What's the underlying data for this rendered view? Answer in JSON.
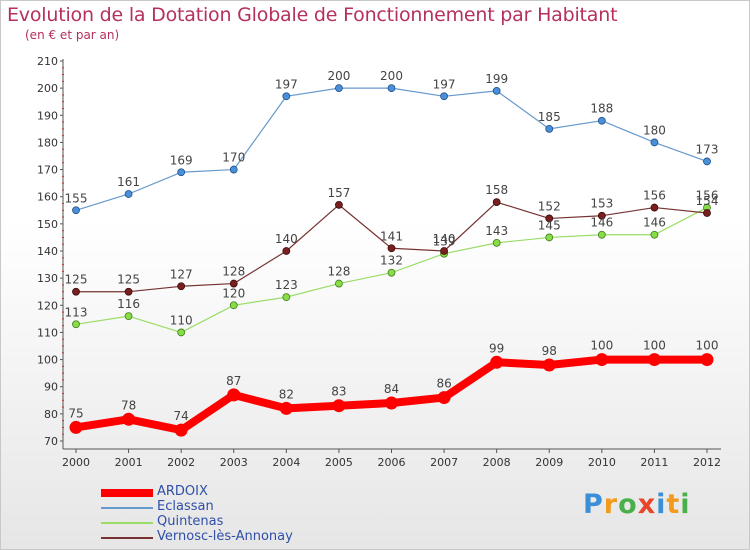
{
  "chart_data": {
    "type": "line",
    "title": "Evolution de la Dotation Globale de Fonctionnement par Habitant",
    "subtitle": "(en € et par an)",
    "x": [
      "2000",
      "2001",
      "2002",
      "2003",
      "2004",
      "2005",
      "2006",
      "2007",
      "2008",
      "2009",
      "2010",
      "2011",
      "2012"
    ],
    "ylim": [
      70,
      210
    ],
    "yticks": [
      70,
      80,
      90,
      100,
      110,
      120,
      130,
      140,
      150,
      160,
      170,
      180,
      190,
      200,
      210
    ],
    "grid": false,
    "legend_position": "bottom-left",
    "series": [
      {
        "name": "ARDOIX",
        "color": "#ff0000",
        "values": [
          75,
          78,
          74,
          87,
          82,
          83,
          84,
          86,
          99,
          98,
          100,
          100,
          100
        ]
      },
      {
        "name": "Eclassan",
        "color": "#6699cc",
        "values": [
          155,
          161,
          169,
          170,
          197,
          200,
          200,
          197,
          199,
          185,
          188,
          180,
          173
        ]
      },
      {
        "name": "Quintenas",
        "color": "#99dd66",
        "values": [
          113,
          116,
          110,
          120,
          123,
          128,
          132,
          139,
          143,
          145,
          146,
          146,
          156
        ]
      },
      {
        "name": "Vernosc-lès-Annonay",
        "color": "#773333",
        "values": [
          125,
          125,
          127,
          128,
          140,
          157,
          141,
          140,
          158,
          152,
          153,
          156,
          154
        ]
      }
    ]
  },
  "logo": {
    "letters": [
      "P",
      "r",
      "o",
      "x",
      "i",
      "t",
      "i"
    ],
    "colors": [
      "#3a8fd6",
      "#f29a1c",
      "#4bb04b",
      "#e8452a",
      "#3a8fd6",
      "#f29a1c",
      "#4bb04b"
    ]
  }
}
